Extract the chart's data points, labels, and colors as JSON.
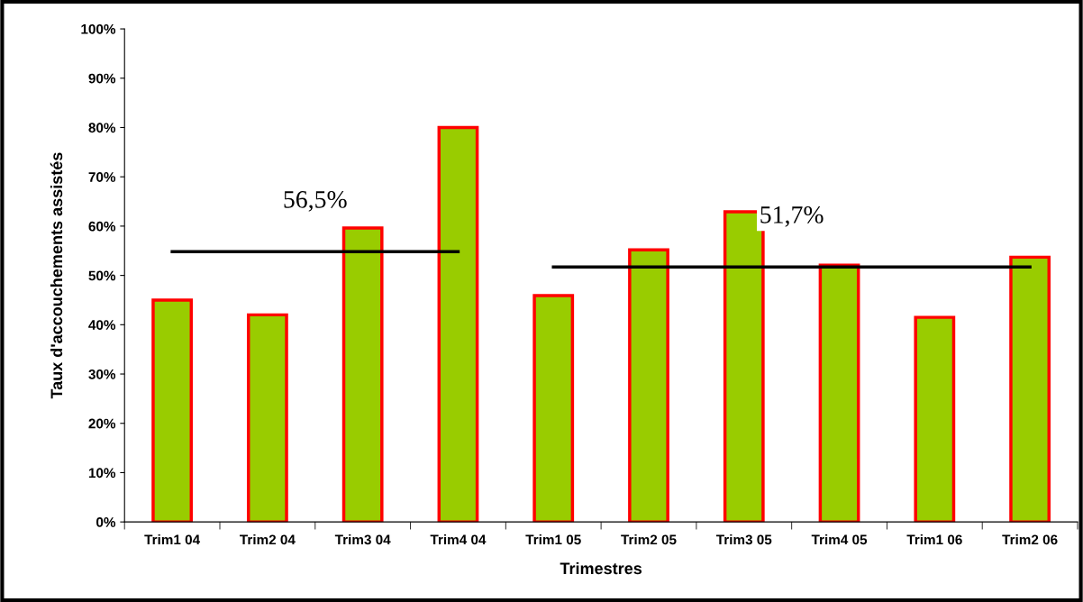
{
  "chart_data": {
    "type": "bar",
    "xlabel": "Trimestres",
    "ylabel": "Taux d'accouchements assistés",
    "categories": [
      "Trim1 04",
      "Trim2 04",
      "Trim3 04",
      "Trim4 04",
      "Trim1 05",
      "Trim2 05",
      "Trim3 05",
      "Trim4 05",
      "Trim1 06",
      "Trim2 06"
    ],
    "series": [
      {
        "color": "#99cc00",
        "values": [
          45.0,
          42.0,
          59.6,
          80.0,
          45.9,
          55.2,
          62.9,
          52.1,
          41.5,
          53.7
        ]
      },
      {
        "type": "line",
        "color": "#000000",
        "values": [
          54.8,
          54.8,
          54.8,
          54.8,
          null,
          null,
          null,
          null,
          null,
          null
        ]
      },
      {
        "type": "line",
        "color": "#000000",
        "values": [
          null,
          null,
          null,
          null,
          51.7,
          51.7,
          51.7,
          51.7,
          51.7,
          51.7
        ]
      }
    ],
    "annotations": [
      "56,5%",
      "51,7%"
    ],
    "ylim": [
      0,
      100
    ],
    "yticks": [
      {
        "value": 0,
        "label": "0%"
      },
      {
        "value": 10,
        "label": "10%"
      },
      {
        "value": 20,
        "label": "20%"
      },
      {
        "value": 30,
        "label": "30%"
      },
      {
        "value": 40,
        "label": "40%"
      },
      {
        "value": 50,
        "label": "50%"
      },
      {
        "value": 60,
        "label": "60%"
      },
      {
        "value": 70,
        "label": "70%"
      },
      {
        "value": 80,
        "label": "80%"
      },
      {
        "value": 90,
        "label": "90%"
      },
      {
        "value": 100,
        "label": "100%"
      }
    ],
    "grid": false,
    "legend": false
  }
}
